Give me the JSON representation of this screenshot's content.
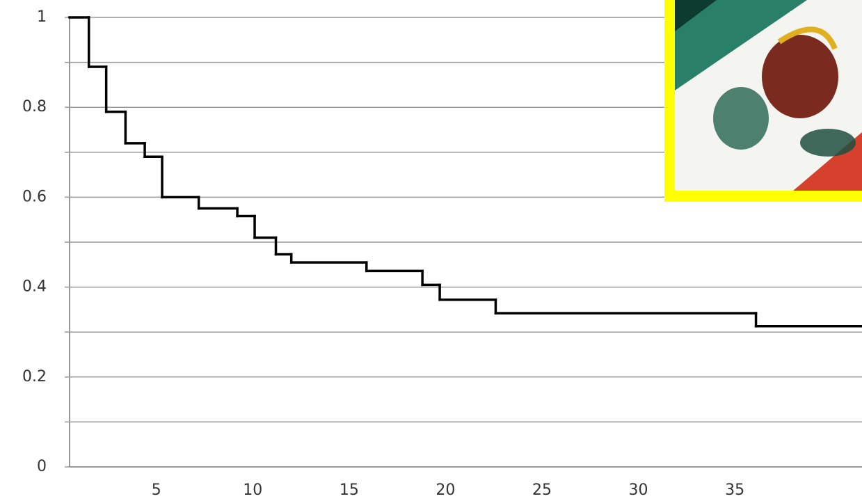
{
  "chart_data": {
    "type": "step",
    "x": [
      0.5,
      1.5,
      2.4,
      3.4,
      4.4,
      5.3,
      7.2,
      9.2,
      10.1,
      11.2,
      12,
      15.9,
      18.8,
      19.7,
      22.6,
      36.1,
      41.6
    ],
    "values": [
      1,
      0.89,
      0.79,
      0.72,
      0.69,
      0.6,
      0.575,
      0.558,
      0.51,
      0.473,
      0.455,
      0.436,
      0.405,
      0.372,
      0.342,
      0.313,
      0.313
    ],
    "color": "#000000",
    "xlim": [
      0.5,
      41.6
    ],
    "xticks": [
      5,
      10,
      15,
      20,
      25,
      30,
      35
    ],
    "ylim": [
      0,
      1
    ],
    "yticks": [
      0,
      0.2,
      0.4,
      0.6,
      0.8,
      1
    ],
    "minor_grid": [
      0.1,
      0.3,
      0.5,
      0.7,
      0.9
    ],
    "grid": true
  }
}
